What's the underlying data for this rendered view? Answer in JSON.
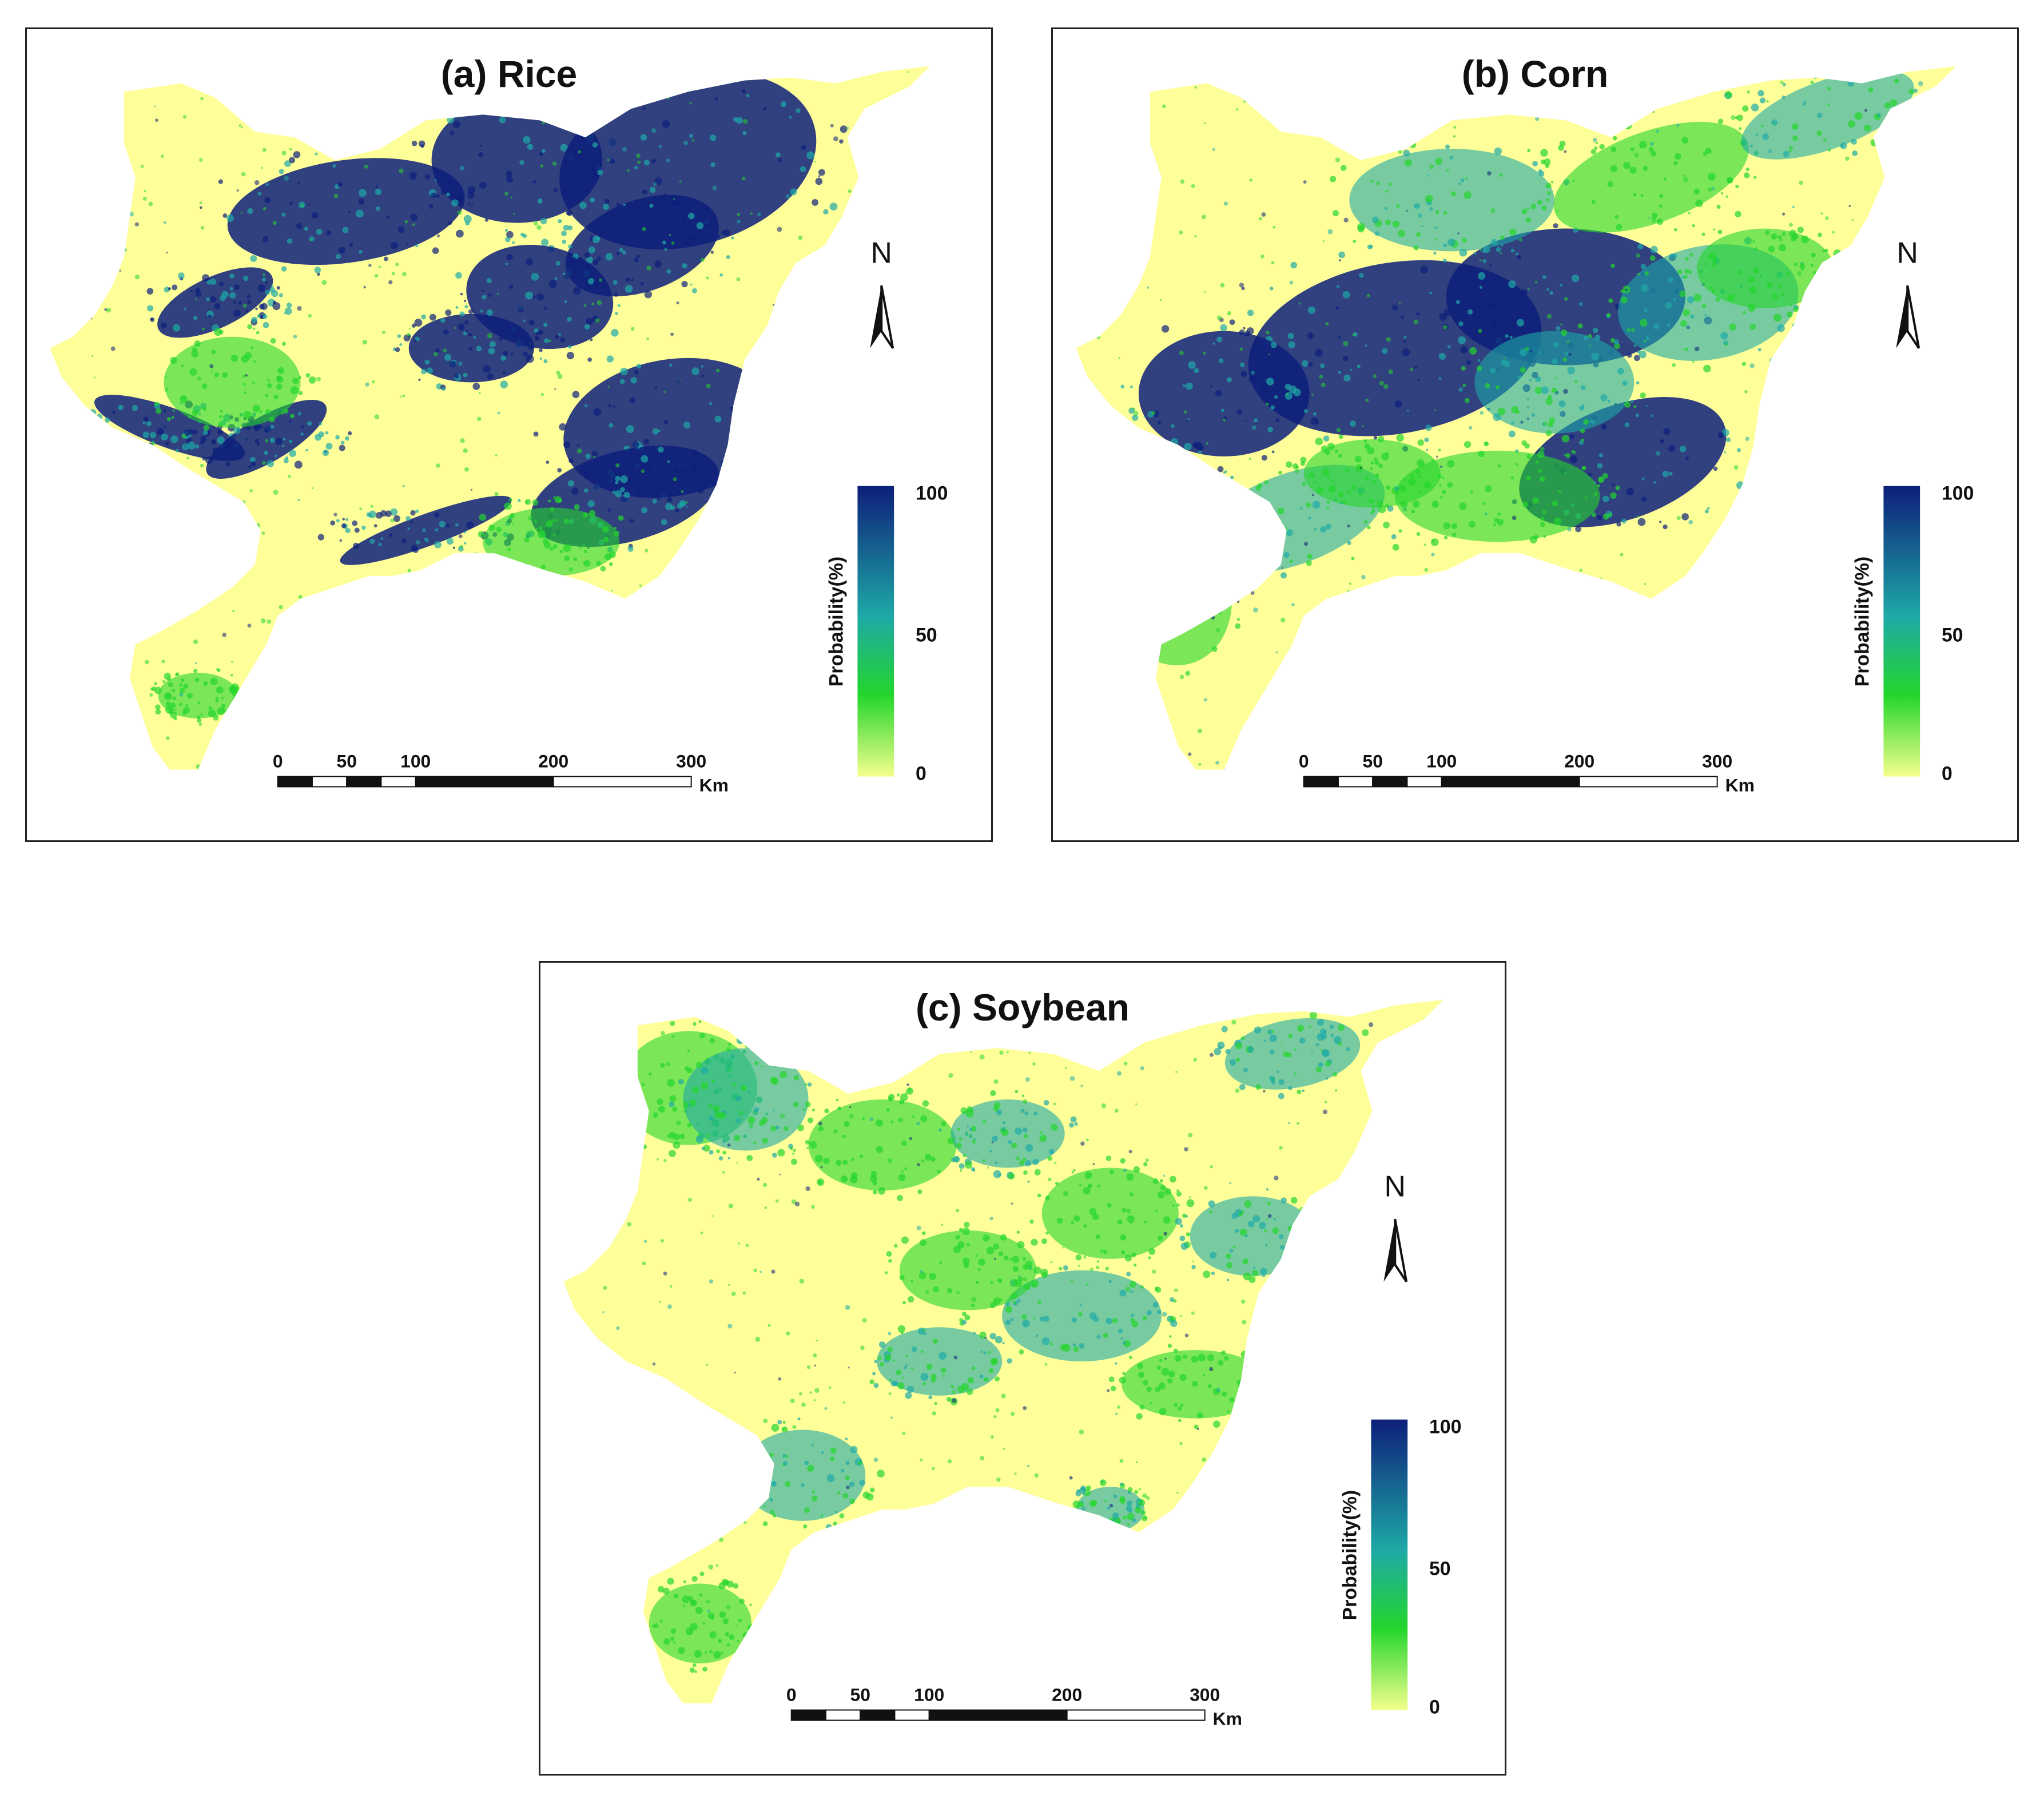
{
  "figure": {
    "colors": {
      "background": "#ffff99",
      "low": "#f4ff8c",
      "mid": "#23d62c",
      "midhigh": "#1ea9a6",
      "high": "#0d1f7a",
      "frame": "#222222",
      "text": "#111111"
    },
    "panels": [
      {
        "id": "a",
        "title": "(a) Rice",
        "pattern": "rice",
        "north_label": "N",
        "legend": {
          "title": "Probability(%)",
          "max_label": "100",
          "mid_label": "50",
          "min_label": "0"
        },
        "scalebar": {
          "ticks": [
            "0",
            "50",
            "100",
            "200",
            "300"
          ],
          "unit": "Km"
        }
      },
      {
        "id": "b",
        "title": "(b) Corn",
        "pattern": "corn",
        "north_label": "N",
        "legend": {
          "title": "Probability(%)",
          "max_label": "100",
          "mid_label": "50",
          "min_label": "0"
        },
        "scalebar": {
          "ticks": [
            "0",
            "50",
            "100",
            "200",
            "300"
          ],
          "unit": "Km"
        }
      },
      {
        "id": "c",
        "title": "(c) Soybean",
        "pattern": "soybean",
        "north_label": "N",
        "legend": {
          "title": "Probability(%)",
          "max_label": "100",
          "mid_label": "50",
          "min_label": "0"
        },
        "scalebar": {
          "ticks": [
            "0",
            "50",
            "100",
            "200",
            "300"
          ],
          "unit": "Km"
        }
      }
    ]
  }
}
